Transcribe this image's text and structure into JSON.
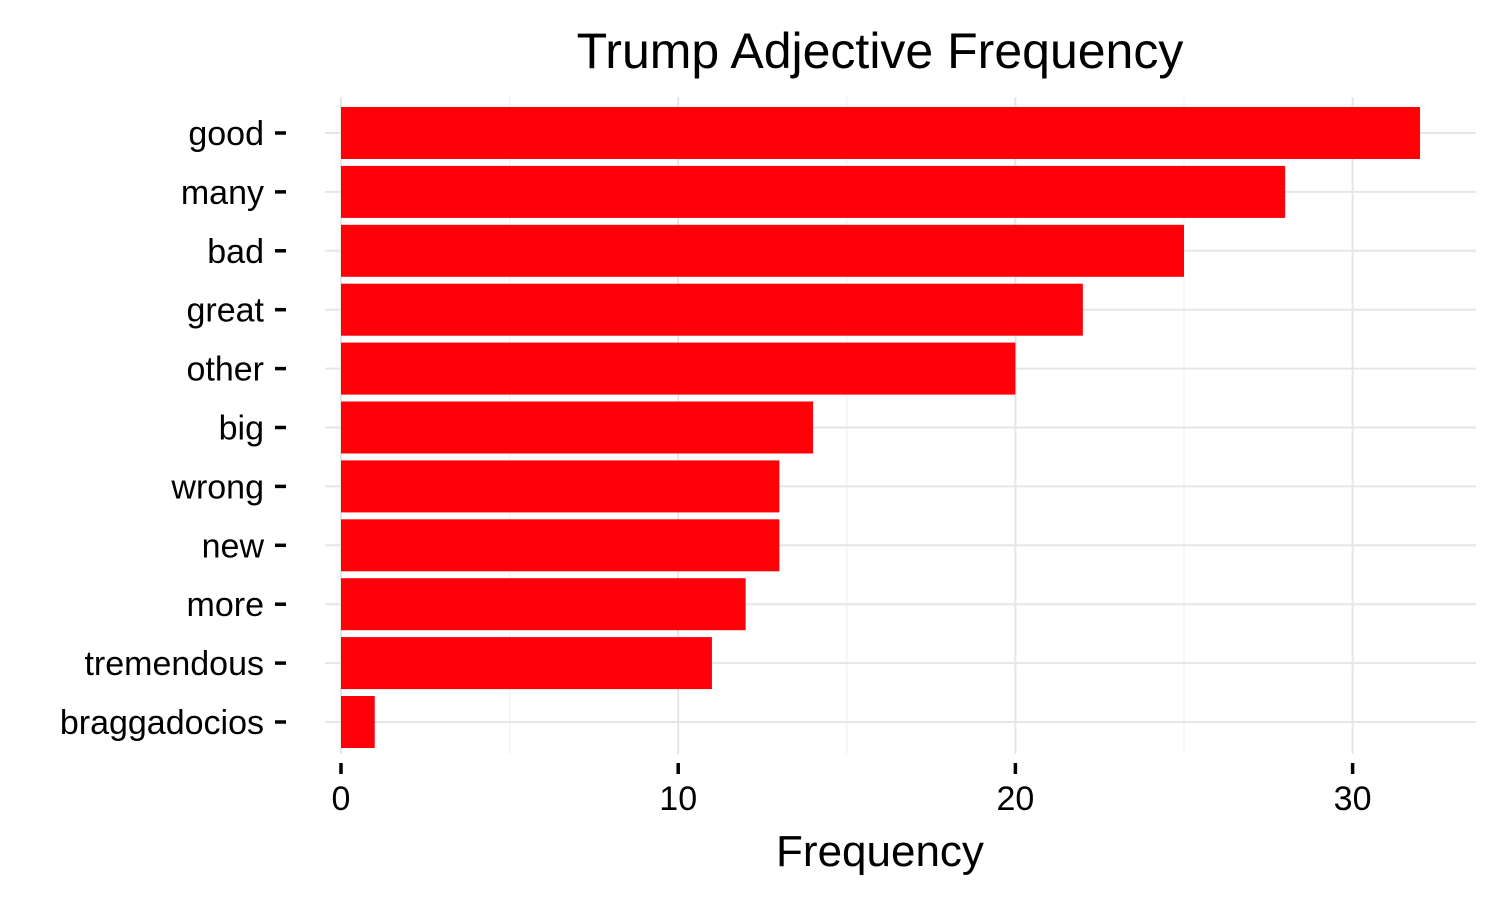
{
  "chart_data": {
    "type": "bar",
    "orientation": "horizontal",
    "title": "Trump Adjective Frequency",
    "xlabel": "Frequency",
    "ylabel": "",
    "categories": [
      "good",
      "many",
      "bad",
      "great",
      "other",
      "big",
      "wrong",
      "new",
      "more",
      "tremendous",
      "braggadocios"
    ],
    "values": [
      32,
      28,
      25,
      22,
      20,
      14,
      13,
      13,
      12,
      11,
      1
    ],
    "xlim": [
      0,
      33.6
    ],
    "x_ticks": [
      0,
      10,
      20,
      30
    ],
    "x_minor_ticks": [
      5,
      15,
      25
    ],
    "grid": true,
    "legend": "none",
    "colors": {
      "bar": "#FF0008",
      "grid_major": "#E6E6E6",
      "grid_minor": "#F3F3F3",
      "text": "#000000",
      "background": "#FFFFFF"
    }
  }
}
